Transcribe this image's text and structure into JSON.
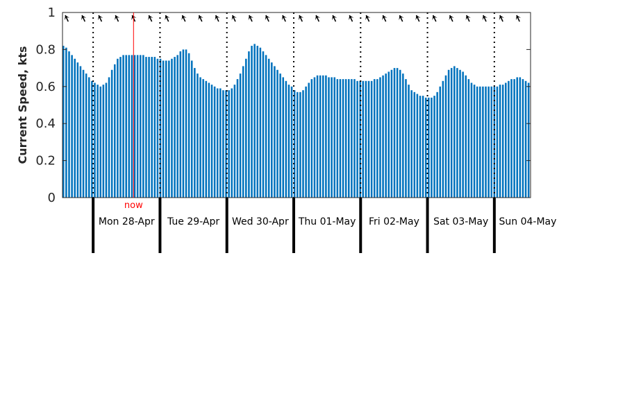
{
  "chart_data": {
    "type": "bar",
    "title": "",
    "xlabel": "",
    "ylabel": "Current Speed, kts",
    "ylim": [
      0,
      1
    ],
    "yticks": [
      {
        "value": 0,
        "label": "0"
      },
      {
        "value": 0.2,
        "label": "0.2"
      },
      {
        "value": 0.4,
        "label": "0.4"
      },
      {
        "value": 0.6,
        "label": "0.6"
      },
      {
        "value": 0.8,
        "label": "0.8"
      },
      {
        "value": 1,
        "label": "1"
      }
    ],
    "grid": false,
    "days": [
      "Mon 28-Apr",
      "Tue 29-Apr",
      "Wed 30-Apr",
      "Thu 01-May",
      "Fri 02-May",
      "Sat 03-May",
      "Sun 04-May"
    ],
    "x_hours_start": -11,
    "x_hours_end": 157,
    "bar_interval_hours": 1,
    "now_label": "now",
    "now_hour": 14.5,
    "series": [
      {
        "values": [
          0.82,
          0.81,
          0.79,
          0.77,
          0.75,
          0.73,
          0.71,
          0.69,
          0.67,
          0.65,
          0.63,
          0.62,
          0.61,
          0.6,
          0.61,
          0.62,
          0.65,
          0.69,
          0.72,
          0.75,
          0.76,
          0.77,
          0.77,
          0.77,
          0.77,
          0.77,
          0.77,
          0.77,
          0.77,
          0.76,
          0.76,
          0.76,
          0.76,
          0.75,
          0.75,
          0.74,
          0.74,
          0.74,
          0.75,
          0.76,
          0.77,
          0.79,
          0.8,
          0.8,
          0.78,
          0.74,
          0.7,
          0.67,
          0.65,
          0.64,
          0.63,
          0.62,
          0.61,
          0.6,
          0.59,
          0.59,
          0.58,
          0.58,
          0.58,
          0.59,
          0.61,
          0.64,
          0.67,
          0.71,
          0.75,
          0.79,
          0.82,
          0.83,
          0.82,
          0.81,
          0.79,
          0.77,
          0.75,
          0.73,
          0.71,
          0.69,
          0.67,
          0.65,
          0.63,
          0.61,
          0.6,
          0.58,
          0.57,
          0.57,
          0.58,
          0.6,
          0.62,
          0.64,
          0.65,
          0.66,
          0.66,
          0.66,
          0.66,
          0.65,
          0.65,
          0.65,
          0.64,
          0.64,
          0.64,
          0.64,
          0.64,
          0.64,
          0.64,
          0.63,
          0.63,
          0.63,
          0.63,
          0.63,
          0.63,
          0.64,
          0.64,
          0.65,
          0.66,
          0.67,
          0.68,
          0.69,
          0.7,
          0.7,
          0.69,
          0.67,
          0.64,
          0.61,
          0.58,
          0.57,
          0.56,
          0.55,
          0.55,
          0.54,
          0.54,
          0.54,
          0.55,
          0.57,
          0.6,
          0.63,
          0.66,
          0.69,
          0.7,
          0.71,
          0.7,
          0.69,
          0.68,
          0.66,
          0.64,
          0.62,
          0.61,
          0.6,
          0.6,
          0.6,
          0.6,
          0.6,
          0.6,
          0.6,
          0.6,
          0.61,
          0.61,
          0.62,
          0.63,
          0.64,
          0.64,
          0.65,
          0.65,
          0.64,
          0.63,
          0.62
        ]
      }
    ],
    "arrow_interval_hours": 6,
    "arrow_start_hour": -10,
    "colors": {
      "bar": "#0072bd",
      "bar_gap": "#ffffff",
      "now_line": "#ff0000",
      "now_text": "#ff0000",
      "axis": "#262626",
      "day_divider": "#000000",
      "arrow": "#000000"
    }
  }
}
